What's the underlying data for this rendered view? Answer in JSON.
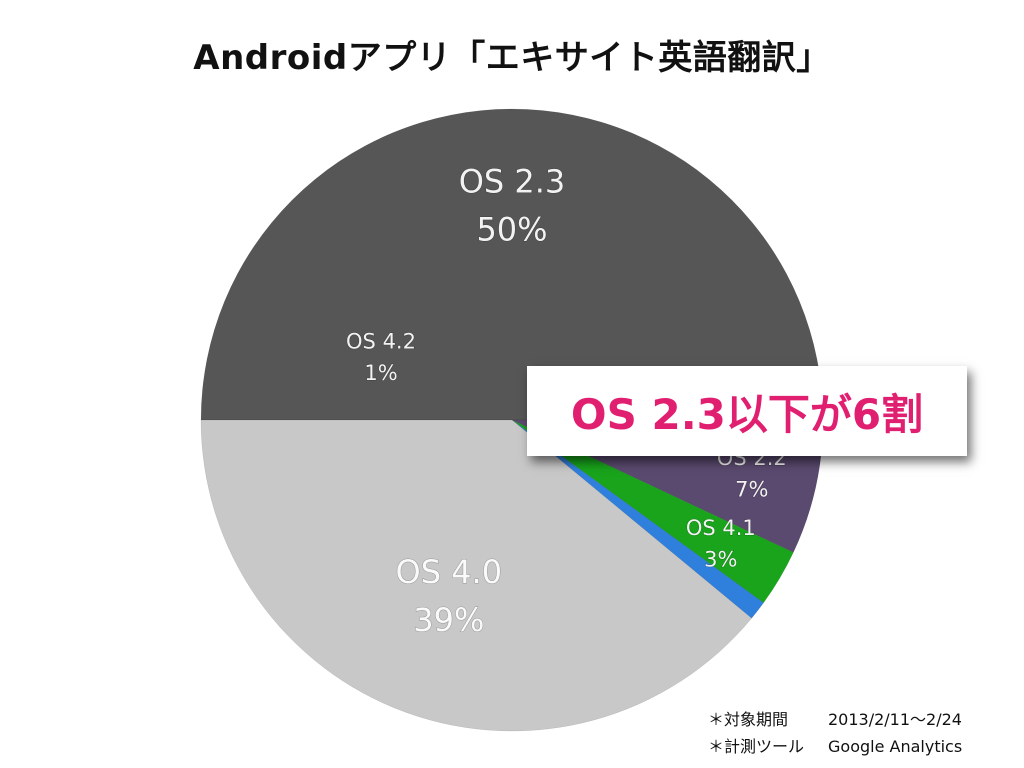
{
  "chart_data": {
    "type": "pie",
    "title": "Androidアプリ「エキサイト英語翻訳」",
    "slices": [
      {
        "label": "OS 2.3",
        "value": 50,
        "display": "50%",
        "color": "#565656",
        "text_color": "#f2f2f2"
      },
      {
        "label": "OS 2.2",
        "value": 7,
        "display": "7%",
        "color": "#5b4a70",
        "text_color": "#f2f2f2"
      },
      {
        "label": "OS 4.1",
        "value": 3,
        "display": "3%",
        "color": "#19a41c",
        "text_color": "#f2f2f2"
      },
      {
        "label": "OS 4.2",
        "value": 1,
        "display": "1%",
        "color": "#2f7fdc",
        "text_color": "#f2f2f2"
      },
      {
        "label": "OS 4.0",
        "value": 39,
        "display": "39%",
        "color": "#c8c8c8",
        "text_color": "#fafafa"
      }
    ],
    "start": "left-horizontal",
    "direction": "clockwise"
  },
  "callout": "OS 2.3以下が6割",
  "notes": [
    {
      "key": "＊対象期間",
      "value": "2013/2/11～2/24"
    },
    {
      "key": "＊計測ツール",
      "value": "Google Analytics"
    }
  ]
}
